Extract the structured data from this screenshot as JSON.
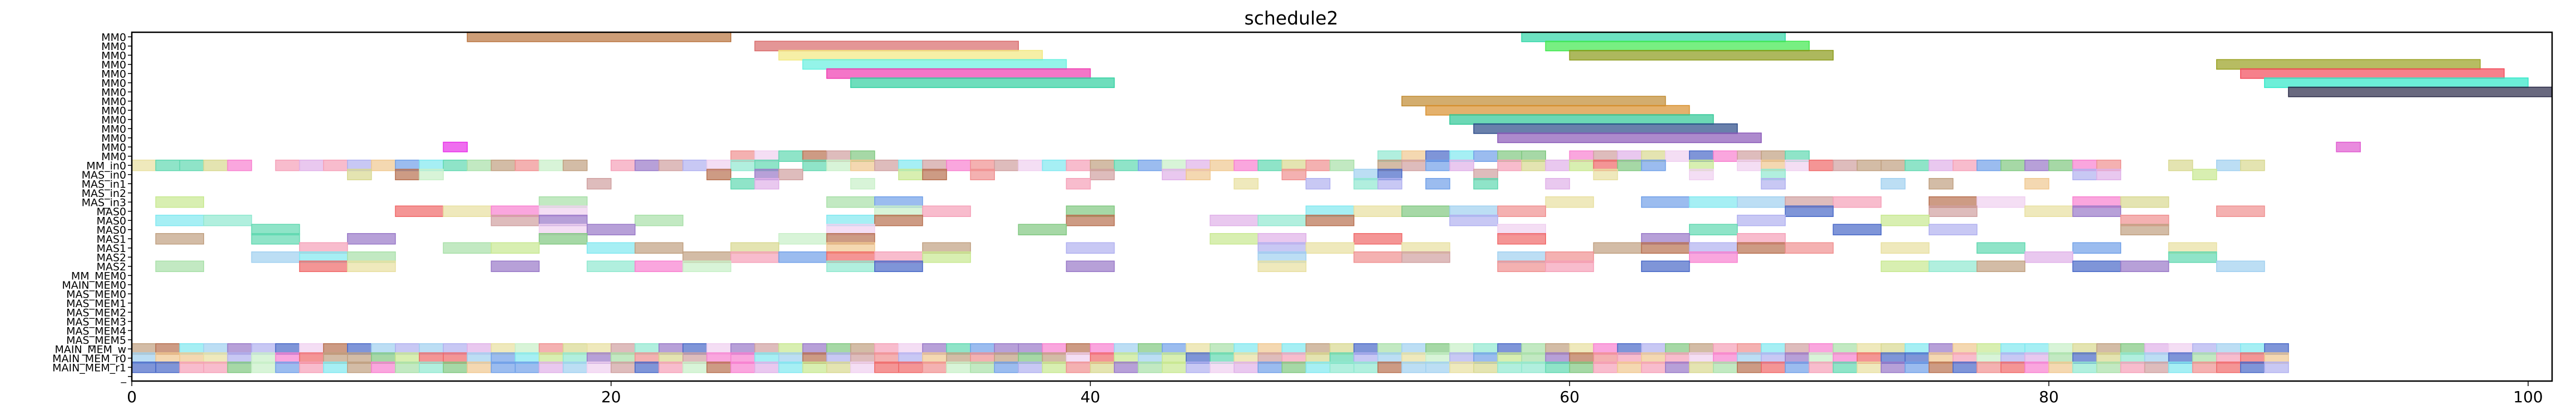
{
  "chart_data": {
    "type": "gantt",
    "title": "schedule2",
    "xlim": [
      0,
      101
    ],
    "xticks": [
      0,
      20,
      40,
      60,
      80,
      100
    ],
    "grid": false,
    "rows": [
      "MM0",
      "MM0",
      "MM0",
      "MM0",
      "MM0",
      "MM0",
      "MM0",
      "MM0",
      "MM0",
      "MM0",
      "MM0",
      "MM0",
      "MM0",
      "MM0",
      "MM_in0",
      "MAS_in0",
      "MAS_in1",
      "MAS_in2",
      "MAS_in3",
      "MAS0",
      "MAS0",
      "MAS0",
      "MAS1",
      "MAS1",
      "MAS2",
      "MAS2",
      "MM_MEM0",
      "MAIN_MEM0",
      "MAS_MEM0",
      "MAS_MEM1",
      "MAS_MEM2",
      "MAS_MEM3",
      "MAS_MEM4",
      "MAS_MEM5",
      "MAIN_MEM_w",
      "MAIN_MEM_r0",
      "MAIN_MEM_r1",
      "_"
    ],
    "tasks": [
      {
        "row": 0,
        "start": 14,
        "end": 25,
        "color": "#b8733d"
      },
      {
        "row": 0,
        "start": 58,
        "end": 69,
        "color": "#2fd6a6"
      },
      {
        "row": 1,
        "start": 26,
        "end": 37,
        "color": "#d96a6a"
      },
      {
        "row": 1,
        "start": 59,
        "end": 70,
        "color": "#3ee84d"
      },
      {
        "row": 2,
        "start": 27,
        "end": 38,
        "color": "#f2e880"
      },
      {
        "row": 2,
        "start": 60,
        "end": 71,
        "color": "#8a9a18"
      },
      {
        "row": 3,
        "start": 28,
        "end": 39,
        "color": "#66f0e0"
      },
      {
        "row": 3,
        "start": 87,
        "end": 98,
        "color": "#98a020"
      },
      {
        "row": 4,
        "start": 29,
        "end": 40,
        "color": "#f03ab0"
      },
      {
        "row": 4,
        "start": 88,
        "end": 99,
        "color": "#f24a5a"
      },
      {
        "row": 5,
        "start": 30,
        "end": 41,
        "color": "#30d0a0"
      },
      {
        "row": 5,
        "start": 89,
        "end": 100,
        "color": "#2ee8c8"
      },
      {
        "row": 6,
        "start": 90,
        "end": 101,
        "color": "#2a2a48"
      },
      {
        "row": 7,
        "start": 53,
        "end": 64,
        "color": "#c08a30"
      },
      {
        "row": 8,
        "start": 54,
        "end": 65,
        "color": "#d8902e"
      },
      {
        "row": 9,
        "start": 55,
        "end": 66,
        "color": "#2ec896"
      },
      {
        "row": 10,
        "start": 56,
        "end": 67,
        "color": "#2a4a88"
      },
      {
        "row": 11,
        "start": 57,
        "end": 68,
        "color": "#8a58b8"
      },
      {
        "row": 12,
        "start": 13,
        "end": 14,
        "color": "#e830e8"
      },
      {
        "row": 12,
        "start": 92,
        "end": 93,
        "color": "#e05ad0"
      }
    ]
  }
}
